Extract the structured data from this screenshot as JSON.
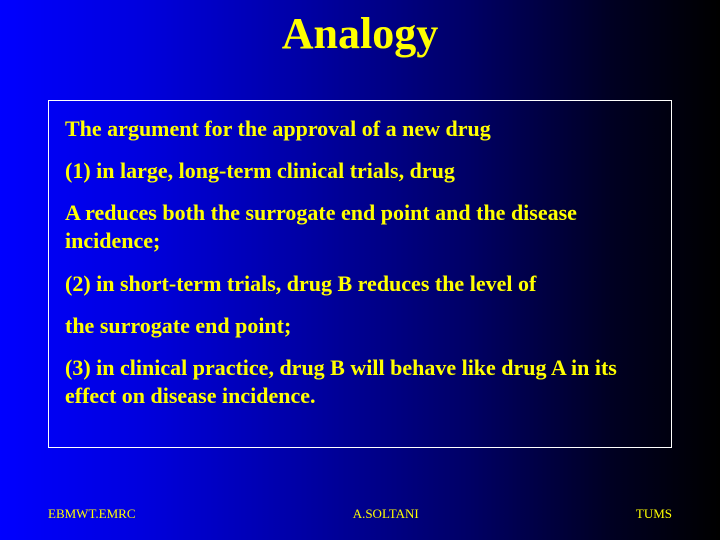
{
  "slide": {
    "title": "Analogy",
    "title_color": "#ffff00",
    "title_fontsize": 44,
    "background_gradient": [
      "#0000ff",
      "#000000"
    ],
    "content_border_color": "#ffffff",
    "body_text_color": "#ffff00",
    "body_fontsize": 22,
    "paragraphs": [
      "The argument for the approval of a new drug",
      " (1) in large, long-term clinical trials, drug",
      "A reduces both the surrogate end point and the disease incidence;",
      "(2) in short-term trials, drug B reduces the level of",
      "the surrogate end point;",
      "(3) in clinical practice, drug B will behave like drug A in its effect on disease incidence."
    ],
    "footer": {
      "left": "EBMWT.EMRC",
      "center": "A.SOLTANI",
      "right": "TUMS",
      "color": "#ffff00",
      "fontsize": 13
    }
  }
}
